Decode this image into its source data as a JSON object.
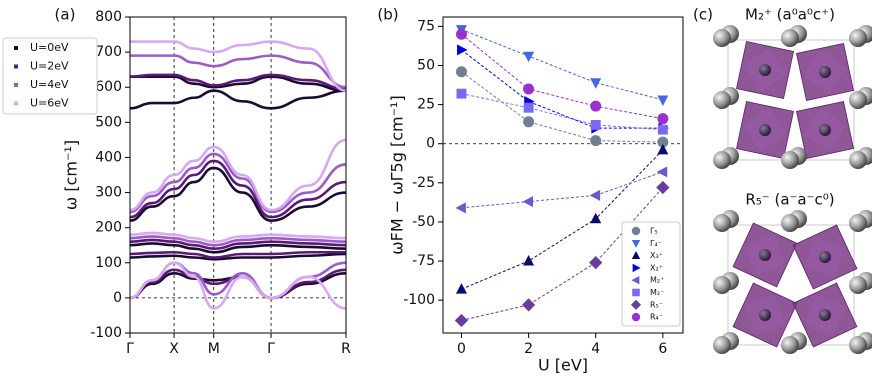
{
  "chart_data": [
    {
      "type": "bands",
      "panel_label": "(a)",
      "y_label": "ω [cm⁻¹]",
      "x": [
        0,
        0.5,
        1,
        1.45,
        1.9,
        2.55,
        3.2,
        4.05,
        4.9
      ],
      "xlim": [
        0,
        4.9
      ],
      "xticks": [
        {
          "value": 0,
          "label": "Γ"
        },
        {
          "value": 1,
          "label": "X"
        },
        {
          "value": 1.9,
          "label": "M"
        },
        {
          "value": 3.2,
          "label": "Γ"
        },
        {
          "value": 4.9,
          "label": "R"
        }
      ],
      "ylim": [
        -100,
        800
      ],
      "yticks": [
        -100,
        0,
        100,
        200,
        300,
        400,
        500,
        600,
        700,
        800
      ],
      "legend": "upper left",
      "series": [
        {
          "name": "U=0eV",
          "color": "#1c0a30",
          "bands": [
            [
              540,
              555,
              555,
              570,
              590,
              560,
              540,
              570,
              590
            ],
            [
              630,
              630,
              630,
              610,
              600,
              610,
              630,
              610,
              590
            ],
            [
              220,
              260,
              290,
              330,
              370,
              300,
              220,
              260,
              300
            ],
            [
              150,
              155,
              150,
              140,
              130,
              145,
              150,
              145,
              140
            ],
            [
              115,
              118,
              120,
              115,
              110,
              115,
              115,
              120,
              125
            ],
            [
              0,
              40,
              70,
              55,
              50,
              60,
              0,
              40,
              70
            ]
          ]
        },
        {
          "name": "U=2eV",
          "color": "#5a1a78",
          "bands": [
            [
              630,
              635,
              635,
              620,
              605,
              620,
              635,
              620,
              595
            ],
            [
              230,
              270,
              310,
              350,
              390,
              320,
              230,
              280,
              330
            ],
            [
              160,
              165,
              160,
              150,
              140,
              155,
              160,
              155,
              150
            ],
            [
              125,
              128,
              130,
              125,
              115,
              125,
              125,
              130,
              130
            ],
            [
              0,
              45,
              80,
              60,
              40,
              60,
              0,
              45,
              80
            ]
          ]
        },
        {
          "name": "U=4eV",
          "color": "#9b5cc6",
          "bands": [
            [
              690,
              690,
              690,
              670,
              660,
              680,
              690,
              670,
              600
            ],
            [
              245,
              290,
              330,
              370,
              410,
              340,
              245,
              300,
              380
            ],
            [
              170,
              175,
              170,
              160,
              150,
              165,
              170,
              165,
              160
            ],
            [
              0,
              50,
              100,
              70,
              10,
              70,
              0,
              60,
              100
            ]
          ]
        },
        {
          "name": "U=6eV",
          "color": "#d8a8f0",
          "bands": [
            [
              730,
              730,
              730,
              710,
              700,
              720,
              730,
              710,
              590
            ],
            [
              250,
              300,
              350,
              390,
              430,
              350,
              250,
              320,
              450
            ],
            [
              180,
              185,
              180,
              170,
              160,
              175,
              180,
              175,
              170
            ],
            [
              0,
              50,
              100,
              60,
              -30,
              60,
              0,
              60,
              -30
            ]
          ]
        }
      ]
    },
    {
      "type": "line",
      "panel_label": "(b)",
      "y_label": "ωFM − ωΓ5g [cm⁻¹]",
      "x_label": "U [eV]",
      "x": [
        0,
        2,
        4,
        6
      ],
      "xlim": [
        -0.55,
        6.6
      ],
      "xticks": [
        0,
        2,
        4,
        6
      ],
      "ylim": [
        -121,
        81
      ],
      "yticks": [
        -100,
        -75,
        -50,
        -25,
        0,
        25,
        50,
        75
      ],
      "legend": "lower right",
      "series": [
        {
          "name": "Γ₅",
          "color": "#708090",
          "marker": "circle",
          "values": [
            46,
            14,
            2,
            1
          ]
        },
        {
          "name": "Γ₄⁻",
          "color": "#4169e1",
          "marker": "triangle-down",
          "values": [
            73,
            56,
            39,
            28
          ]
        },
        {
          "name": "X₃⁺",
          "color": "#0b0b6e",
          "marker": "triangle-up",
          "values": [
            -93,
            -75,
            -48,
            -4
          ]
        },
        {
          "name": "X₂⁺",
          "color": "#0000e0",
          "marker": "triangle-right",
          "values": [
            60,
            27,
            10,
            10
          ]
        },
        {
          "name": "M₂⁺",
          "color": "#6a5acd",
          "marker": "triangle-left",
          "values": [
            -41,
            -37,
            -33,
            -18
          ]
        },
        {
          "name": "M₂⁻",
          "color": "#7b68ee",
          "marker": "square",
          "values": [
            32,
            23,
            12,
            9
          ]
        },
        {
          "name": "R₅⁻",
          "color": "#6a3d9a",
          "marker": "diamond",
          "values": [
            -113,
            -103,
            -76,
            -28
          ]
        },
        {
          "name": "R₄⁻",
          "color": "#9932cc",
          "marker": "circle",
          "values": [
            70,
            35,
            24,
            16
          ]
        }
      ]
    }
  ],
  "structures": {
    "panel_label": "(c)",
    "titles": [
      "M₂⁺ (a⁰a⁰c⁺)",
      "R₅⁻ (a⁻a⁻c⁰)"
    ]
  }
}
